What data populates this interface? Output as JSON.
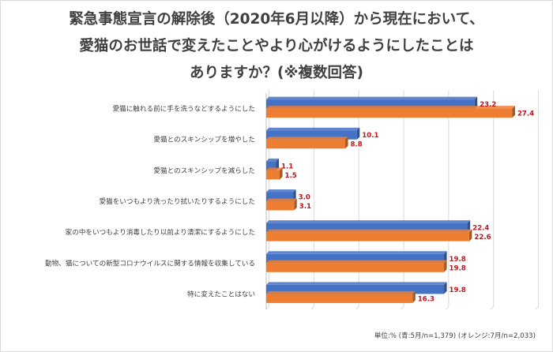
{
  "title_lines": [
    "緊急事態宣言の解除後（2020年6月以降）から現在において、",
    "愛猫のお世話で変えたことやより心がけるようにしたことは",
    "ありますか？(※複数回答)"
  ],
  "footnote": "単位:% (青:5月/n=1,379) (オレンジ:7月/n=2,033)",
  "colors": {
    "blue": "#4472c4",
    "orange": "#ed7d31",
    "value_text": "#c0141c"
  },
  "chart_data": {
    "type": "bar",
    "orientation": "horizontal",
    "categories": [
      "愛猫に触れる前に手を洗うなどするようにした",
      "愛猫とのスキンシップを増やした",
      "愛猫とのスキンシップを減らした",
      "愛猫をいつもより洗ったり拭いたりするようにした",
      "家の中をいつもより消毒したり以前より清潔にするようにした",
      "動物、猫についての新型コロナウイルスに関する情報を収集している",
      "特に変えたことはない"
    ],
    "series": [
      {
        "values": [
          23.2,
          10.1,
          1.1,
          3.0,
          22.4,
          19.8,
          19.8
        ],
        "labels": [
          "23.2",
          "10.1",
          "1.1",
          "3.0",
          "22.4",
          "19.8",
          "19.8"
        ]
      },
      {
        "values": [
          27.4,
          8.8,
          1.5,
          3.1,
          22.6,
          19.8,
          16.3
        ],
        "labels": [
          "27.4",
          "8.8",
          "1.5",
          "3.1",
          "22.6",
          "19.8",
          "16.3"
        ]
      }
    ],
    "xlim": [
      0,
      30
    ],
    "grid": true,
    "unit": "%"
  }
}
